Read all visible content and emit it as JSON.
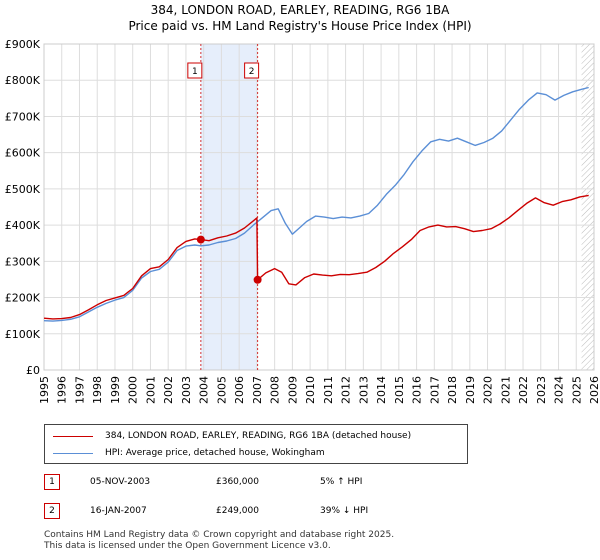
{
  "chart_data": {
    "type": "line",
    "title": "384, LONDON ROAD, EARLEY, READING, RG6 1BA",
    "subtitle": "Price paid vs. HM Land Registry's House Price Index (HPI)",
    "xlim": [
      1995,
      2026
    ],
    "ylim": [
      0,
      900000
    ],
    "x_ticks": [
      "1995",
      "1996",
      "1997",
      "1998",
      "1999",
      "2000",
      "2001",
      "2002",
      "2003",
      "2004",
      "2005",
      "2006",
      "2007",
      "2008",
      "2009",
      "2010",
      "2011",
      "2012",
      "2013",
      "2014",
      "2015",
      "2016",
      "2017",
      "2018",
      "2019",
      "2020",
      "2021",
      "2022",
      "2023",
      "2024",
      "2025",
      "2026"
    ],
    "y_ticks": [
      {
        "value": 0,
        "label": "£0"
      },
      {
        "value": 100000,
        "label": "£100K"
      },
      {
        "value": 200000,
        "label": "£200K"
      },
      {
        "value": 300000,
        "label": "£300K"
      },
      {
        "value": 400000,
        "label": "£400K"
      },
      {
        "value": 500000,
        "label": "£500K"
      },
      {
        "value": 600000,
        "label": "£600K"
      },
      {
        "value": 700000,
        "label": "£700K"
      },
      {
        "value": 800000,
        "label": "£800K"
      },
      {
        "value": 900000,
        "label": "£900K"
      }
    ],
    "highlight_span": [
      2003.84,
      2007.04
    ],
    "hatch_after": 2025.3,
    "series": [
      {
        "name": "384, LONDON ROAD, EARLEY, READING, RG6 1BA (detached house)",
        "color": "#cc0000",
        "points": [
          [
            1995.0,
            143000
          ],
          [
            1995.5,
            141000
          ],
          [
            1996.0,
            142000
          ],
          [
            1996.5,
            145000
          ],
          [
            1997.0,
            153000
          ],
          [
            1997.5,
            166000
          ],
          [
            1998.0,
            180000
          ],
          [
            1998.5,
            192000
          ],
          [
            1999.0,
            199000
          ],
          [
            1999.5,
            206000
          ],
          [
            2000.0,
            225000
          ],
          [
            2000.5,
            260000
          ],
          [
            2001.0,
            280000
          ],
          [
            2001.5,
            285000
          ],
          [
            2002.0,
            305000
          ],
          [
            2002.5,
            338000
          ],
          [
            2003.0,
            355000
          ],
          [
            2003.5,
            362000
          ],
          [
            2003.84,
            360000
          ],
          [
            2004.3,
            357000
          ],
          [
            2004.8,
            365000
          ],
          [
            2005.3,
            370000
          ],
          [
            2005.8,
            378000
          ],
          [
            2006.3,
            392000
          ],
          [
            2006.8,
            412000
          ],
          [
            2007.0,
            420000
          ],
          [
            2007.04,
            249000
          ],
          [
            2007.5,
            268000
          ],
          [
            2008.0,
            280000
          ],
          [
            2008.4,
            270000
          ],
          [
            2008.8,
            238000
          ],
          [
            2009.2,
            235000
          ],
          [
            2009.7,
            255000
          ],
          [
            2010.2,
            265000
          ],
          [
            2010.7,
            262000
          ],
          [
            2011.2,
            260000
          ],
          [
            2011.7,
            264000
          ],
          [
            2012.2,
            263000
          ],
          [
            2012.7,
            266000
          ],
          [
            2013.2,
            270000
          ],
          [
            2013.7,
            283000
          ],
          [
            2014.2,
            300000
          ],
          [
            2014.7,
            322000
          ],
          [
            2015.2,
            340000
          ],
          [
            2015.7,
            360000
          ],
          [
            2016.2,
            385000
          ],
          [
            2016.7,
            395000
          ],
          [
            2017.2,
            400000
          ],
          [
            2017.7,
            395000
          ],
          [
            2018.2,
            396000
          ],
          [
            2018.7,
            390000
          ],
          [
            2019.2,
            382000
          ],
          [
            2019.7,
            385000
          ],
          [
            2020.2,
            390000
          ],
          [
            2020.7,
            403000
          ],
          [
            2021.2,
            420000
          ],
          [
            2021.7,
            440000
          ],
          [
            2022.2,
            460000
          ],
          [
            2022.7,
            475000
          ],
          [
            2023.2,
            462000
          ],
          [
            2023.7,
            455000
          ],
          [
            2024.2,
            465000
          ],
          [
            2024.7,
            470000
          ],
          [
            2025.2,
            478000
          ],
          [
            2025.7,
            482000
          ]
        ]
      },
      {
        "name": "HPI: Average price, detached house, Wokingham",
        "color": "#5b8fd6",
        "points": [
          [
            1995.0,
            136000
          ],
          [
            1995.5,
            135000
          ],
          [
            1996.0,
            137000
          ],
          [
            1996.5,
            140000
          ],
          [
            1997.0,
            147000
          ],
          [
            1997.5,
            160000
          ],
          [
            1998.0,
            173000
          ],
          [
            1998.5,
            184000
          ],
          [
            1999.0,
            193000
          ],
          [
            1999.5,
            200000
          ],
          [
            2000.0,
            220000
          ],
          [
            2000.5,
            254000
          ],
          [
            2001.0,
            272000
          ],
          [
            2001.5,
            278000
          ],
          [
            2002.0,
            298000
          ],
          [
            2002.5,
            330000
          ],
          [
            2003.0,
            342000
          ],
          [
            2003.5,
            345000
          ],
          [
            2003.84,
            343000
          ],
          [
            2004.3,
            345000
          ],
          [
            2004.8,
            352000
          ],
          [
            2005.3,
            356000
          ],
          [
            2005.8,
            363000
          ],
          [
            2006.3,
            378000
          ],
          [
            2006.8,
            400000
          ],
          [
            2007.3,
            420000
          ],
          [
            2007.8,
            440000
          ],
          [
            2008.2,
            445000
          ],
          [
            2008.6,
            405000
          ],
          [
            2009.0,
            375000
          ],
          [
            2009.3,
            388000
          ],
          [
            2009.8,
            410000
          ],
          [
            2010.3,
            425000
          ],
          [
            2010.8,
            422000
          ],
          [
            2011.3,
            418000
          ],
          [
            2011.8,
            422000
          ],
          [
            2012.3,
            420000
          ],
          [
            2012.8,
            425000
          ],
          [
            2013.3,
            432000
          ],
          [
            2013.8,
            455000
          ],
          [
            2014.3,
            485000
          ],
          [
            2014.8,
            510000
          ],
          [
            2015.3,
            540000
          ],
          [
            2015.8,
            575000
          ],
          [
            2016.3,
            605000
          ],
          [
            2016.8,
            630000
          ],
          [
            2017.3,
            637000
          ],
          [
            2017.8,
            632000
          ],
          [
            2018.3,
            640000
          ],
          [
            2018.8,
            630000
          ],
          [
            2019.3,
            620000
          ],
          [
            2019.8,
            628000
          ],
          [
            2020.3,
            640000
          ],
          [
            2020.8,
            660000
          ],
          [
            2021.3,
            690000
          ],
          [
            2021.8,
            720000
          ],
          [
            2022.3,
            745000
          ],
          [
            2022.8,
            765000
          ],
          [
            2023.3,
            760000
          ],
          [
            2023.8,
            745000
          ],
          [
            2024.3,
            758000
          ],
          [
            2024.8,
            768000
          ],
          [
            2025.3,
            775000
          ],
          [
            2025.7,
            780000
          ]
        ]
      }
    ],
    "sales": [
      {
        "id": "1",
        "x": 2003.84,
        "price": 360000
      },
      {
        "id": "2",
        "x": 2007.04,
        "price": 249000
      }
    ]
  },
  "legend": {
    "property_label": "384, LONDON ROAD, EARLEY, READING, RG6 1BA (detached house)",
    "hpi_label": "HPI: Average price, detached house, Wokingham"
  },
  "transactions": [
    {
      "id": "1",
      "date": "05-NOV-2003",
      "price": "£360,000",
      "hpi": "5% ↑ HPI"
    },
    {
      "id": "2",
      "date": "16-JAN-2007",
      "price": "£249,000",
      "hpi": "39% ↓ HPI"
    }
  ],
  "footer": {
    "line1": "Contains HM Land Registry data © Crown copyright and database right 2025.",
    "line2": "This data is licensed under the Open Government Licence v3.0."
  },
  "colors": {
    "property": "#cc0000",
    "hpi": "#5b8fd6",
    "highlight": "#e6eefb",
    "grid": "#dddddd"
  }
}
